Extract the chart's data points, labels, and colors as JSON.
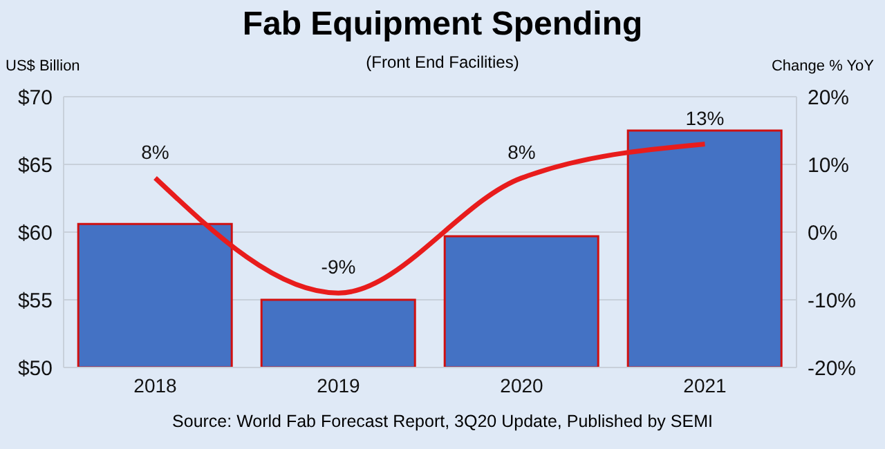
{
  "chart_data": {
    "type": "bar",
    "title": "Fab Equipment Spending",
    "subtitle": "(Front End Facilities)",
    "ylabel": "US$ Billion",
    "y2label": "Change % YoY",
    "categories": [
      "2018",
      "2019",
      "2020",
      "2021"
    ],
    "series": [
      {
        "color": "#4472c4",
        "values": [
          60.6,
          55.0,
          59.7,
          67.5
        ]
      },
      {
        "type": "line",
        "axis": "y2",
        "color": "#e81c1c",
        "values": [
          8,
          -9,
          8,
          13
        ],
        "value_labels": [
          "8%",
          "-9%",
          "8%",
          "13%"
        ]
      }
    ],
    "ylim": [
      50,
      70
    ],
    "yticks": [
      {
        "value": 50,
        "label": "$50"
      },
      {
        "value": 55,
        "label": "$55"
      },
      {
        "value": 60,
        "label": "$60"
      },
      {
        "value": 65,
        "label": "$65"
      },
      {
        "value": 70,
        "label": "$70"
      }
    ],
    "y2lim": [
      -20,
      20
    ],
    "y2ticks": [
      {
        "value": -20,
        "label": "-20%"
      },
      {
        "value": -10,
        "label": "-10%"
      },
      {
        "value": 0,
        "label": "0%"
      },
      {
        "value": 10,
        "label": "10%"
      },
      {
        "value": 20,
        "label": "20%"
      }
    ],
    "grid": "y",
    "legend": false,
    "marker": "none",
    "annotations": [
      "Source: World Fab Forecast Report, 3Q20 Update, Published by SEMI"
    ]
  }
}
